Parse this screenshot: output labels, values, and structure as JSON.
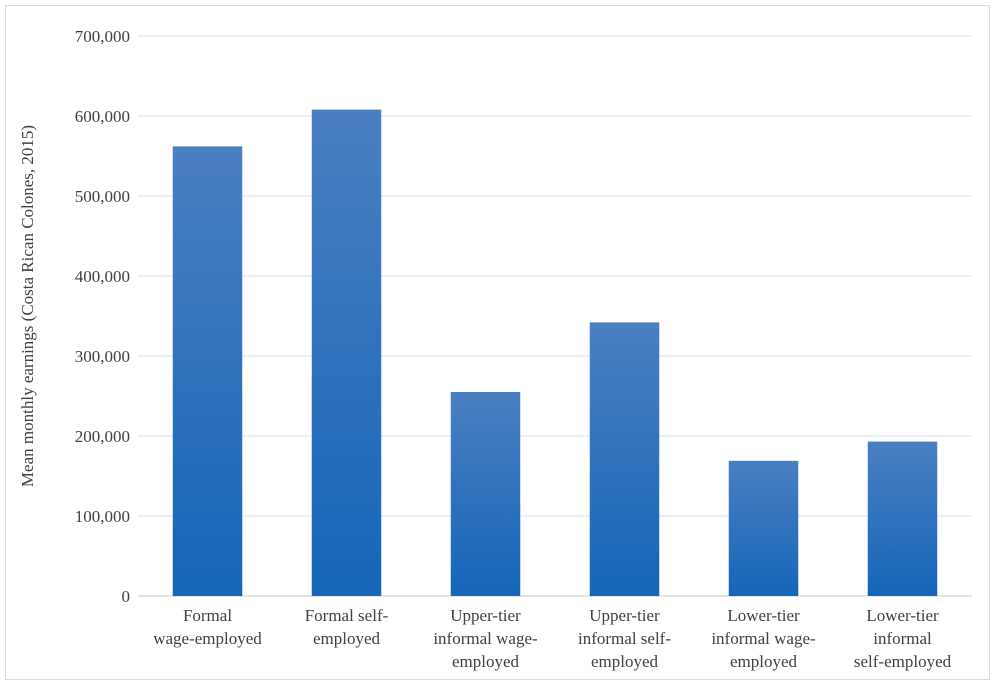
{
  "chart_data": {
    "type": "bar",
    "title": "",
    "xlabel": "",
    "ylabel": "Mean monthly earnings (Costa Rican Colones, 2015)",
    "ylim": [
      0,
      700000
    ],
    "yticks": [
      0,
      100000,
      200000,
      300000,
      400000,
      500000,
      600000,
      700000
    ],
    "ytick_labels": [
      "0",
      "100,000",
      "200,000",
      "300,000",
      "400,000",
      "500,000",
      "600,000",
      "700,000"
    ],
    "grid": true,
    "legend": "none",
    "categories": [
      [
        "Formal",
        "wage-employed"
      ],
      [
        "Formal self-",
        "employed"
      ],
      [
        "Upper-tier",
        "informal wage-",
        "employed"
      ],
      [
        "Upper-tier",
        "informal self-",
        "employed"
      ],
      [
        "Lower-tier",
        "informal wage-",
        "employed"
      ],
      [
        "Lower-tier",
        "informal",
        "self-employed"
      ]
    ],
    "values": [
      562000,
      608000,
      255000,
      342000,
      169000,
      193000
    ],
    "colors": {
      "bar_top": "#4a7fc1",
      "bar_bottom": "#1565b8",
      "grid": "#d6e2ea"
    }
  }
}
